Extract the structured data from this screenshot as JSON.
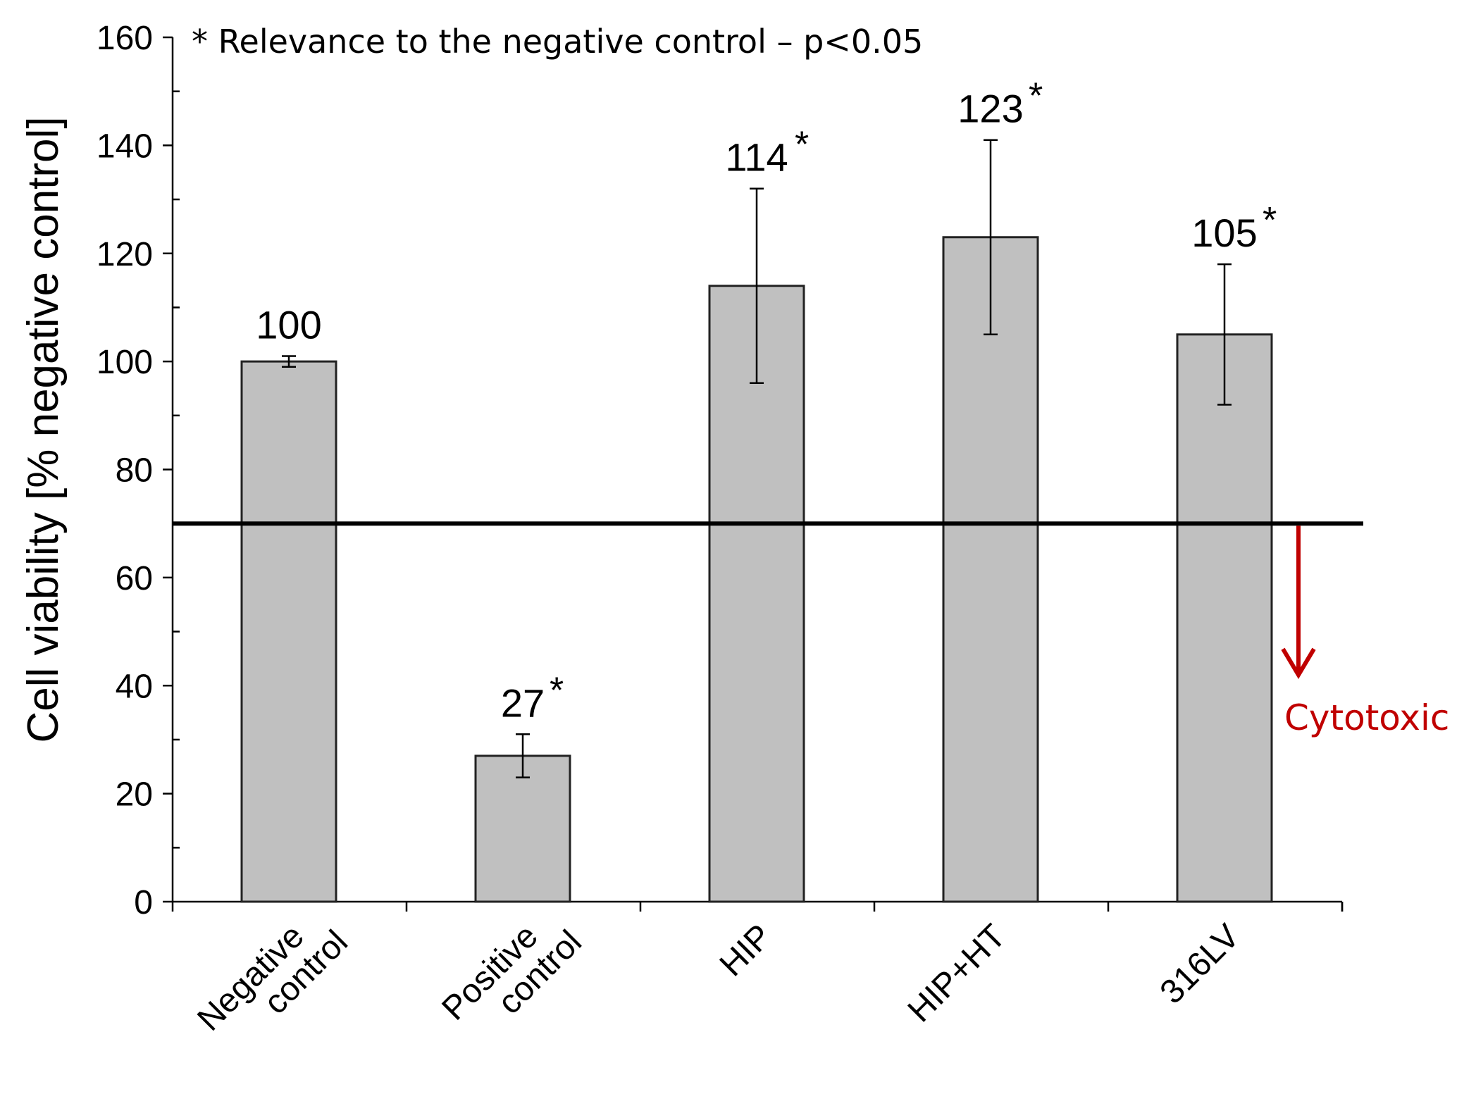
{
  "chart_data": {
    "type": "bar",
    "title": "",
    "xlabel": "",
    "ylabel": "Cell viability  [% negative control]",
    "ylim": [
      0,
      160
    ],
    "yticks": [
      0,
      20,
      40,
      60,
      80,
      100,
      120,
      140,
      160
    ],
    "categories": [
      [
        "Negative",
        "control"
      ],
      [
        "Positive",
        "control"
      ],
      [
        "HIP"
      ],
      [
        "HIP+HT"
      ],
      [
        "316LV"
      ]
    ],
    "values": [
      100,
      27,
      114,
      123,
      105
    ],
    "errors": [
      1,
      4,
      18,
      18,
      13
    ],
    "value_labels": [
      "100",
      "27",
      "114",
      "123",
      "105"
    ],
    "significant": [
      false,
      true,
      true,
      true,
      true
    ],
    "significance_marker": "*",
    "threshold": 70,
    "threshold_label": "Cytotoxic",
    "annotation": "* Relevance to the negative control – p<0.05",
    "colors": {
      "bar_fill": "#c0c0c0",
      "bar_stroke": "#222222",
      "threshold_line": "#000000",
      "arrow": "#c00000"
    }
  }
}
